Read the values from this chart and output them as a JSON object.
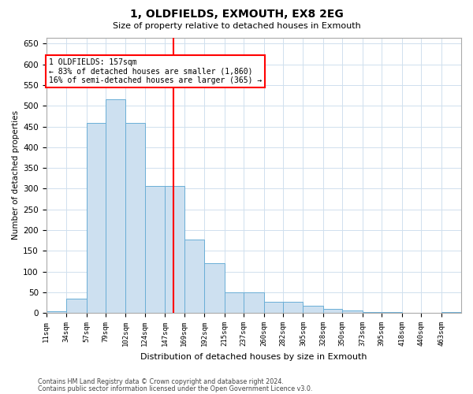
{
  "title": "1, OLDFIELDS, EXMOUTH, EX8 2EG",
  "subtitle": "Size of property relative to detached houses in Exmouth",
  "xlabel": "Distribution of detached houses by size in Exmouth",
  "ylabel": "Number of detached properties",
  "footer_line1": "Contains HM Land Registry data © Crown copyright and database right 2024.",
  "footer_line2": "Contains public sector information licensed under the Open Government Licence v3.0.",
  "bar_color": "#cde0f0",
  "bar_edge_color": "#6aaed6",
  "grid_color": "#d0e0ee",
  "red_line_x": 157,
  "annotation_title": "1 OLDFIELDS: 157sqm",
  "annotation_line1": "← 83% of detached houses are smaller (1,860)",
  "annotation_line2": "16% of semi-detached houses are larger (365) →",
  "categories": [
    "11sqm",
    "34sqm",
    "57sqm",
    "79sqm",
    "102sqm",
    "124sqm",
    "147sqm",
    "169sqm",
    "192sqm",
    "215sqm",
    "237sqm",
    "260sqm",
    "282sqm",
    "305sqm",
    "328sqm",
    "350sqm",
    "373sqm",
    "395sqm",
    "418sqm",
    "440sqm",
    "463sqm"
  ],
  "bin_edges": [
    11,
    34,
    57,
    79,
    102,
    124,
    147,
    169,
    192,
    215,
    237,
    260,
    282,
    305,
    328,
    350,
    373,
    395,
    418,
    440,
    463,
    486
  ],
  "values": [
    5,
    35,
    458,
    515,
    458,
    307,
    307,
    178,
    120,
    50,
    50,
    27,
    27,
    17,
    10,
    7,
    3,
    3,
    1,
    1,
    3
  ],
  "ylim": [
    0,
    665
  ],
  "yticks": [
    0,
    50,
    100,
    150,
    200,
    250,
    300,
    350,
    400,
    450,
    500,
    550,
    600,
    650
  ],
  "background_color": "#ffffff"
}
